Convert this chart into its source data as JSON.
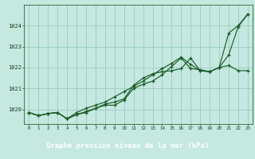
{
  "title": "Graphe pression niveau de la mer (hPa)",
  "bg_color": "#c5e8e0",
  "grid_color": "#90c8b8",
  "line_color": "#1a5c28",
  "label_bg": "#3a7a40",
  "label_fg": "#ffffff",
  "x_labels": [
    "0",
    "1",
    "2",
    "3",
    "4",
    "5",
    "6",
    "7",
    "8",
    "9",
    "10",
    "11",
    "12",
    "13",
    "14",
    "15",
    "16",
    "17",
    "18",
    "19",
    "20",
    "21",
    "22",
    "23"
  ],
  "ylim": [
    1019.3,
    1025.0
  ],
  "yticks": [
    1020,
    1021,
    1022,
    1023,
    1024
  ],
  "line_wavy": [
    1019.85,
    1019.7,
    1019.8,
    1019.85,
    1019.55,
    1019.75,
    1019.85,
    1020.05,
    1020.2,
    1020.2,
    1020.45,
    1021.0,
    1021.2,
    1021.35,
    1021.65,
    1022.05,
    1022.45,
    1021.95,
    1021.9,
    1021.8,
    1022.0,
    1022.6,
    1023.95,
    1024.55
  ],
  "line_mid": [
    1019.85,
    1019.7,
    1019.8,
    1019.85,
    1019.55,
    1019.75,
    1019.9,
    1020.05,
    1020.25,
    1020.35,
    1020.5,
    1021.15,
    1021.5,
    1021.7,
    1021.8,
    1021.85,
    1021.95,
    1022.45,
    1021.85,
    1021.8,
    1022.0,
    1022.1,
    1021.85,
    1021.85
  ],
  "line_diagonal": [
    1019.85,
    1019.7,
    1019.8,
    1019.85,
    1019.55,
    1019.85,
    1020.05,
    1020.2,
    1020.35,
    1020.6,
    1020.85,
    1021.1,
    1021.35,
    1021.65,
    1021.95,
    1022.2,
    1022.5,
    1022.15,
    1021.85,
    1021.8,
    1022.0,
    1023.65,
    1024.0,
    1024.55
  ]
}
